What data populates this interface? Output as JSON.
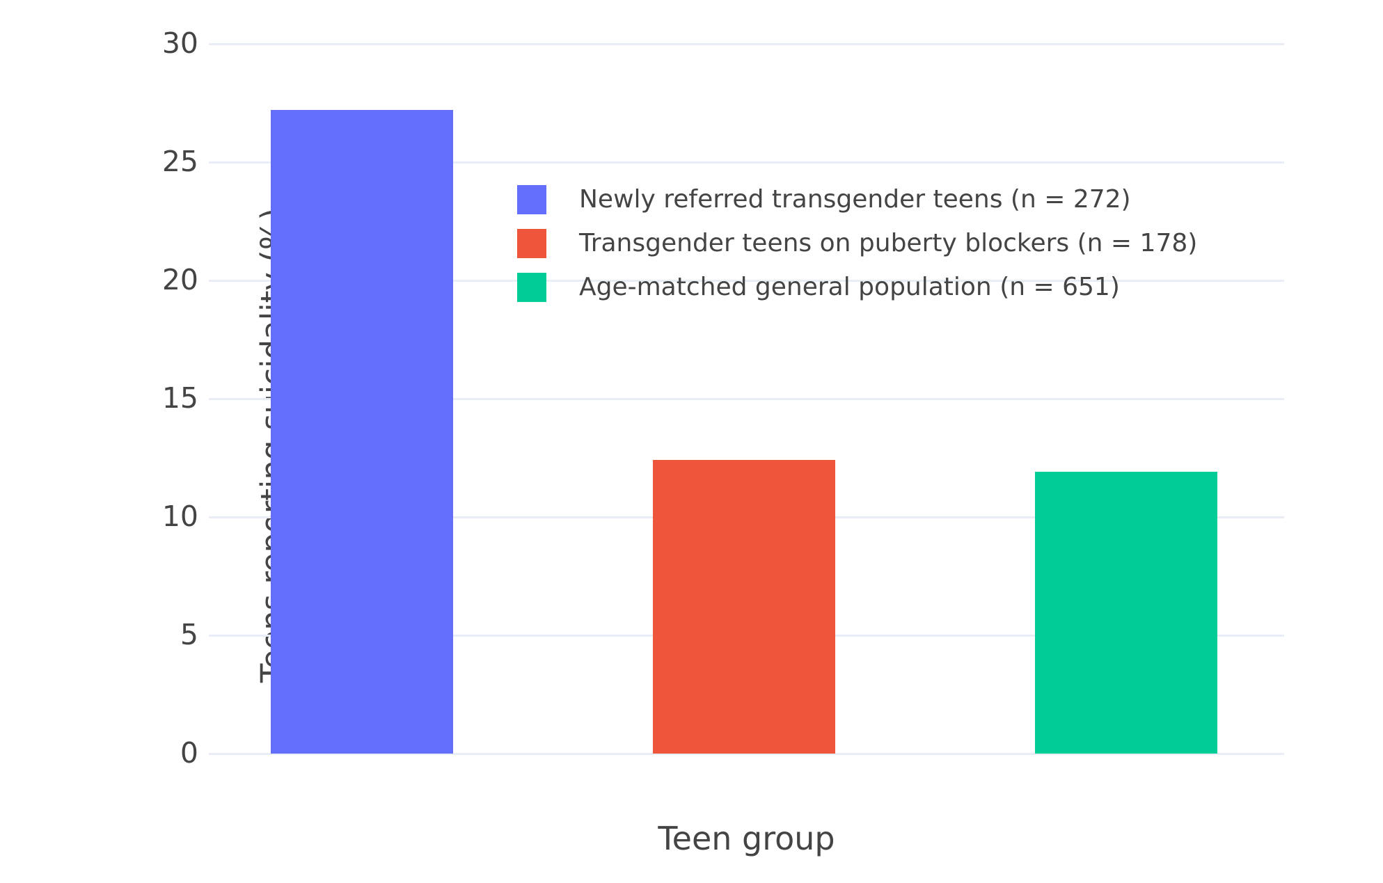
{
  "chart_data": {
    "type": "bar",
    "title": "",
    "xlabel": "Teen group",
    "ylabel": "Teens reporting suicidality (%)",
    "ylim": [
      0,
      30
    ],
    "yticks": [
      0,
      5,
      10,
      15,
      20,
      25,
      30
    ],
    "grid": true,
    "legend_position": "inside-top-center",
    "categories": [
      "Newly referred transgender teens (n = 272)",
      "Transgender teens on puberty blockers (n = 178)",
      "Age-matched general population (n = 651)"
    ],
    "series": [
      {
        "name": "Newly referred transgender teens (n = 272)",
        "value": 27.2,
        "color": "#636efa"
      },
      {
        "name": "Transgender teens on puberty blockers (n = 178)",
        "value": 12.4,
        "color": "#ef553b"
      },
      {
        "name": "Age-matched general population (n = 651)",
        "value": 11.9,
        "color": "#00cc96"
      }
    ],
    "colors": {
      "grid": "#e8edf6",
      "text": "#444444",
      "background": "#ffffff"
    }
  }
}
